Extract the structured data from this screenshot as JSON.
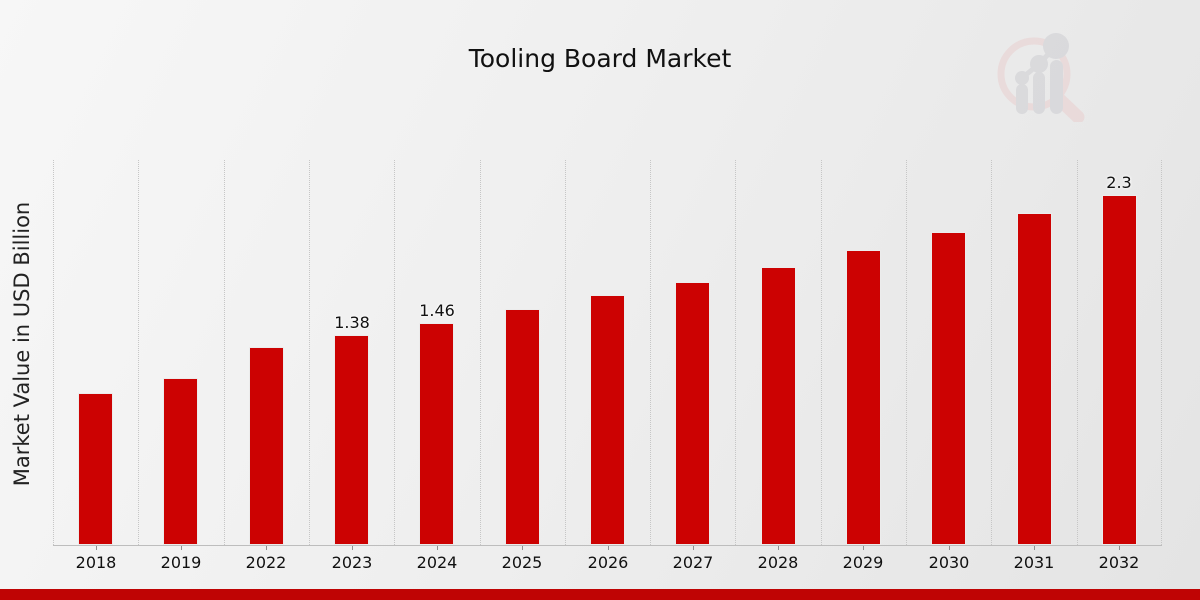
{
  "page": {
    "title": "Tooling Board Market"
  },
  "icons": {
    "watermark": "magnifier-bar-chart-logo-icon"
  },
  "colors": {
    "bar_red": "#cc0202",
    "footer_red": "#bf0404",
    "watermark_pink": "#e9cfcf",
    "watermark_grey": "#cdcdd2"
  },
  "chart_data": {
    "type": "bar",
    "title": "Tooling Board Market",
    "xlabel": "",
    "ylabel": "Market Value in USD Billion",
    "categories": [
      "2018",
      "2019",
      "2022",
      "2023",
      "2024",
      "2025",
      "2026",
      "2027",
      "2028",
      "2029",
      "2030",
      "2031",
      "2032"
    ],
    "values": [
      1.0,
      1.1,
      1.3,
      1.38,
      1.46,
      1.55,
      1.64,
      1.73,
      1.83,
      1.94,
      2.06,
      2.18,
      2.3
    ],
    "data_labels": [
      null,
      null,
      null,
      "1.38",
      "1.46",
      null,
      null,
      null,
      null,
      null,
      null,
      null,
      "2.3"
    ],
    "series_name": "Market Value in USD Billion",
    "ylim": [
      0,
      2.53
    ],
    "grid": "vertical-dotted",
    "legend": "none",
    "bar_color": "#cc0202"
  }
}
